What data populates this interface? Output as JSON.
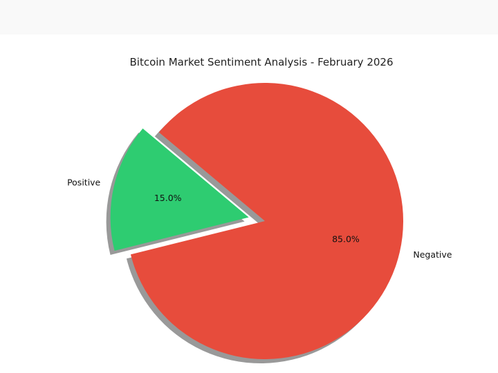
{
  "chart_data": {
    "type": "pie",
    "title": "Bitcoin Market Sentiment Analysis - February 2026",
    "slices": [
      {
        "label": "Positive",
        "value": 15.0,
        "pct_label": "15.0%",
        "color": "#2ecc71",
        "exploded": true
      },
      {
        "label": "Negative",
        "value": 85.0,
        "pct_label": "85.0%",
        "color": "#e74c3c",
        "exploded": false
      }
    ],
    "shadow": true,
    "legend": "none"
  }
}
